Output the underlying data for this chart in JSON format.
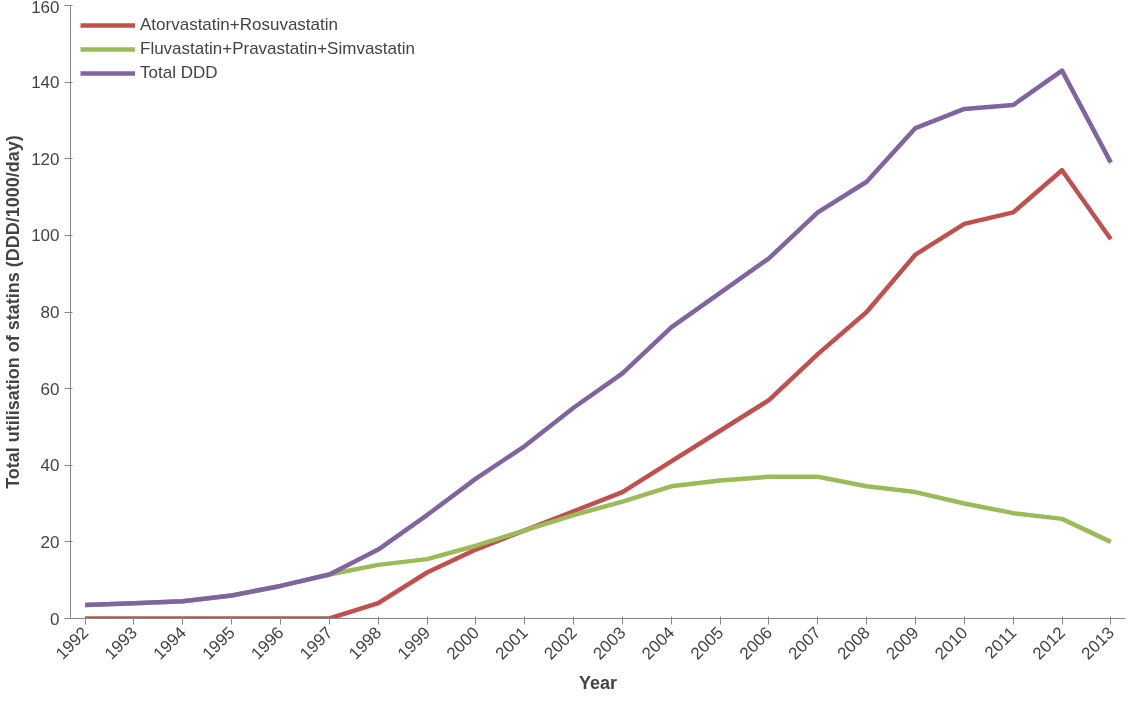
{
  "chart_data": {
    "type": "line",
    "xlabel": "Year",
    "ylabel": "Total utilisation of statins (DDD/1000/day)",
    "categories": [
      "1992",
      "1993",
      "1994",
      "1995",
      "1996",
      "1997",
      "1998",
      "1999",
      "2000",
      "2001",
      "2002",
      "2003",
      "2004",
      "2005",
      "2006",
      "2007",
      "2008",
      "2009",
      "2010",
      "2011",
      "2012",
      "2013"
    ],
    "series": [
      {
        "name": "Atorvastatin+Rosuvastatin",
        "color": "#c0504d",
        "values": [
          0,
          0,
          0,
          0,
          0,
          0,
          4,
          12,
          18,
          23,
          28,
          33,
          41,
          49,
          57,
          69,
          80,
          95,
          103,
          106,
          117,
          99
        ]
      },
      {
        "name": "Fluvastatin+Pravastatin+Simvastatin",
        "color": "#9bbb59",
        "values": [
          3.5,
          4,
          4.5,
          6,
          8.5,
          11.5,
          14,
          15.5,
          19,
          23,
          27,
          30.5,
          34.5,
          36,
          37,
          37,
          34.5,
          33,
          30,
          27.5,
          26,
          20
        ]
      },
      {
        "name": "Total DDD",
        "color": "#8064a2",
        "values": [
          3.5,
          4,
          4.5,
          6,
          8.5,
          11.5,
          18,
          27,
          36.5,
          45,
          55,
          64,
          76,
          85,
          94,
          106,
          114,
          128,
          133,
          134,
          143,
          119
        ]
      }
    ],
    "ylim": [
      0,
      160
    ],
    "yticks": [
      0,
      20,
      40,
      60,
      80,
      100,
      120,
      140,
      160
    ],
    "grid": false,
    "legend": "top left",
    "marker": "none",
    "line_style": "solid"
  }
}
